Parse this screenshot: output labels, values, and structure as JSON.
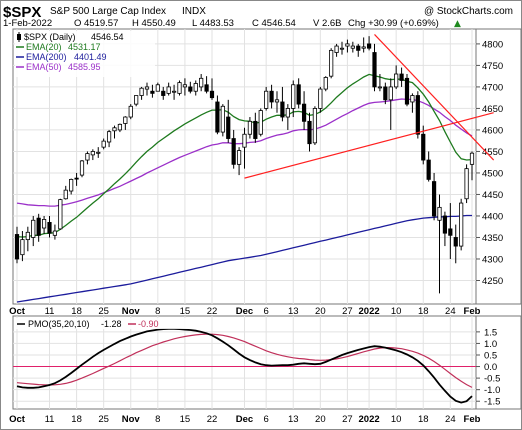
{
  "colors": {
    "up_candle": "#ffffff",
    "down_candle": "#000000",
    "ema20": "#1e7a1e",
    "ema200": "#1c1c9c",
    "ema50": "#9b30c9",
    "trendline": "#ff2020",
    "pmo": "#000000",
    "pmo_signal": "#c0305a",
    "zero_line": "#e0206a",
    "panel_bg": "#ffffff",
    "axis_bg": "#f0eeee"
  },
  "header": {
    "symbol": "$SPX",
    "name": "S&P 500 Large Cap Index",
    "exchange": "INDX",
    "watermark": "@ StockCharts.com",
    "date": "1-Feb-2022",
    "open": "O 4519.57",
    "high": "H 4550.49",
    "low": "L 4483.53",
    "close": "C 4546.54",
    "volume": "V 2.6B",
    "change": "Chg +30.99 (+0.69%)",
    "change_arrow": "▲"
  },
  "legend": [
    {
      "label": "$SPX (Daily)",
      "value": "4546.54",
      "color": "#000000",
      "kind": "candle"
    },
    {
      "label": "EMA(20)",
      "value": "4531.17",
      "color": "#1e7a1e",
      "kind": "line"
    },
    {
      "label": "EMA(200)",
      "value": "4401.49",
      "color": "#1c1c9c",
      "kind": "line"
    },
    {
      "label": "EMA(50)",
      "value": "4585.95",
      "color": "#9b30c9",
      "kind": "line"
    }
  ],
  "pmo_legend": {
    "label": "PMO(35,20,10)",
    "value": "-1.28",
    "signal": "-0.90"
  },
  "chart_data": [
    {
      "type": "candlestick",
      "title": "$SPX S&P 500 Large Cap Index INDX",
      "ylim": [
        4200,
        4830
      ],
      "y_ticks": [
        "4250",
        "4300",
        "4350",
        "4400",
        "4450",
        "4500",
        "4550",
        "4600",
        "4650",
        "4700",
        "4750",
        "4800"
      ],
      "x_ticks": [
        "Oct",
        "11",
        "18",
        "25",
        "Nov",
        "8",
        "15",
        "22",
        "Dec",
        "6",
        "13",
        "20",
        "27",
        "2022",
        "10",
        "18",
        "24",
        "Feb"
      ],
      "x_tick_index": [
        0,
        6,
        11,
        16,
        21,
        26,
        31,
        36,
        42,
        46,
        51,
        56,
        61,
        65,
        70,
        75,
        80,
        84
      ],
      "candles": [
        {
          "o": 4357,
          "h": 4375,
          "l": 4290,
          "c": 4300
        },
        {
          "o": 4310,
          "h": 4365,
          "l": 4295,
          "c": 4345
        },
        {
          "o": 4345,
          "h": 4375,
          "l": 4318,
          "c": 4362
        },
        {
          "o": 4350,
          "h": 4400,
          "l": 4330,
          "c": 4390
        },
        {
          "o": 4395,
          "h": 4405,
          "l": 4340,
          "c": 4355
        },
        {
          "o": 4372,
          "h": 4400,
          "l": 4358,
          "c": 4392
        },
        {
          "o": 4385,
          "h": 4400,
          "l": 4350,
          "c": 4360
        },
        {
          "o": 4355,
          "h": 4380,
          "l": 4345,
          "c": 4365
        },
        {
          "o": 4370,
          "h": 4440,
          "l": 4368,
          "c": 4438
        },
        {
          "o": 4440,
          "h": 4470,
          "l": 4438,
          "c": 4460
        },
        {
          "o": 4458,
          "h": 4487,
          "l": 4450,
          "c": 4485
        },
        {
          "o": 4488,
          "h": 4500,
          "l": 4470,
          "c": 4487
        },
        {
          "o": 4495,
          "h": 4530,
          "l": 4490,
          "c": 4528
        },
        {
          "o": 4530,
          "h": 4550,
          "l": 4520,
          "c": 4545
        },
        {
          "o": 4542,
          "h": 4555,
          "l": 4530,
          "c": 4550
        },
        {
          "o": 4546,
          "h": 4560,
          "l": 4535,
          "c": 4548
        },
        {
          "o": 4560,
          "h": 4580,
          "l": 4555,
          "c": 4574
        },
        {
          "o": 4572,
          "h": 4600,
          "l": 4560,
          "c": 4596
        },
        {
          "o": 4598,
          "h": 4610,
          "l": 4580,
          "c": 4605
        },
        {
          "o": 4600,
          "h": 4615,
          "l": 4595,
          "c": 4613
        },
        {
          "o": 4615,
          "h": 4632,
          "l": 4600,
          "c": 4630
        },
        {
          "o": 4630,
          "h": 4660,
          "l": 4625,
          "c": 4655
        },
        {
          "o": 4660,
          "h": 4680,
          "l": 4655,
          "c": 4680
        },
        {
          "o": 4680,
          "h": 4700,
          "l": 4670,
          "c": 4697
        },
        {
          "o": 4695,
          "h": 4710,
          "l": 4680,
          "c": 4700
        },
        {
          "o": 4690,
          "h": 4705,
          "l": 4675,
          "c": 4685
        },
        {
          "o": 4690,
          "h": 4710,
          "l": 4690,
          "c": 4705
        },
        {
          "o": 4690,
          "h": 4700,
          "l": 4670,
          "c": 4680
        },
        {
          "o": 4685,
          "h": 4710,
          "l": 4680,
          "c": 4700
        },
        {
          "o": 4690,
          "h": 4705,
          "l": 4670,
          "c": 4690
        },
        {
          "o": 4685,
          "h": 4715,
          "l": 4680,
          "c": 4710
        },
        {
          "o": 4700,
          "h": 4720,
          "l": 4680,
          "c": 4705
        },
        {
          "o": 4700,
          "h": 4712,
          "l": 4685,
          "c": 4690
        },
        {
          "o": 4690,
          "h": 4715,
          "l": 4680,
          "c": 4708
        },
        {
          "o": 4700,
          "h": 4730,
          "l": 4690,
          "c": 4720
        },
        {
          "o": 4705,
          "h": 4725,
          "l": 4685,
          "c": 4690
        },
        {
          "o": 4690,
          "h": 4720,
          "l": 4670,
          "c": 4675
        },
        {
          "o": 4665,
          "h": 4680,
          "l": 4590,
          "c": 4595
        },
        {
          "o": 4595,
          "h": 4660,
          "l": 4585,
          "c": 4655
        },
        {
          "o": 4630,
          "h": 4670,
          "l": 4570,
          "c": 4580
        },
        {
          "o": 4580,
          "h": 4600,
          "l": 4510,
          "c": 4520
        },
        {
          "o": 4520,
          "h": 4560,
          "l": 4495,
          "c": 4552
        },
        {
          "o": 4560,
          "h": 4605,
          "l": 4510,
          "c": 4590
        },
        {
          "o": 4590,
          "h": 4630,
          "l": 4580,
          "c": 4620
        },
        {
          "o": 4620,
          "h": 4640,
          "l": 4570,
          "c": 4580
        },
        {
          "o": 4590,
          "h": 4650,
          "l": 4585,
          "c": 4645
        },
        {
          "o": 4650,
          "h": 4700,
          "l": 4645,
          "c": 4690
        },
        {
          "o": 4690,
          "h": 4705,
          "l": 4650,
          "c": 4665
        },
        {
          "o": 4665,
          "h": 4690,
          "l": 4640,
          "c": 4670
        },
        {
          "o": 4665,
          "h": 4700,
          "l": 4620,
          "c": 4630
        },
        {
          "o": 4630,
          "h": 4660,
          "l": 4600,
          "c": 4650
        },
        {
          "o": 4650,
          "h": 4715,
          "l": 4630,
          "c": 4705
        },
        {
          "o": 4705,
          "h": 4720,
          "l": 4650,
          "c": 4660
        },
        {
          "o": 4660,
          "h": 4690,
          "l": 4600,
          "c": 4620
        },
        {
          "o": 4620,
          "h": 4640,
          "l": 4550,
          "c": 4568
        },
        {
          "o": 4570,
          "h": 4655,
          "l": 4565,
          "c": 4650
        },
        {
          "o": 4650,
          "h": 4700,
          "l": 4640,
          "c": 4695
        },
        {
          "o": 4695,
          "h": 4725,
          "l": 4690,
          "c": 4722
        },
        {
          "o": 4725,
          "h": 4790,
          "l": 4720,
          "c": 4785
        },
        {
          "o": 4780,
          "h": 4800,
          "l": 4770,
          "c": 4795
        },
        {
          "o": 4790,
          "h": 4805,
          "l": 4775,
          "c": 4790
        },
        {
          "o": 4795,
          "h": 4810,
          "l": 4780,
          "c": 4800
        },
        {
          "o": 4790,
          "h": 4805,
          "l": 4780,
          "c": 4795
        },
        {
          "o": 4795,
          "h": 4800,
          "l": 4770,
          "c": 4785
        },
        {
          "o": 4790,
          "h": 4815,
          "l": 4780,
          "c": 4793
        },
        {
          "o": 4800,
          "h": 4818,
          "l": 4785,
          "c": 4790
        },
        {
          "o": 4780,
          "h": 4800,
          "l": 4690,
          "c": 4700
        },
        {
          "o": 4700,
          "h": 4730,
          "l": 4690,
          "c": 4700
        },
        {
          "o": 4700,
          "h": 4710,
          "l": 4660,
          "c": 4670
        },
        {
          "o": 4670,
          "h": 4720,
          "l": 4600,
          "c": 4700
        },
        {
          "o": 4700,
          "h": 4750,
          "l": 4695,
          "c": 4730
        },
        {
          "o": 4730,
          "h": 4745,
          "l": 4700,
          "c": 4715
        },
        {
          "o": 4720,
          "h": 4730,
          "l": 4655,
          "c": 4660
        },
        {
          "o": 4665,
          "h": 4685,
          "l": 4640,
          "c": 4680
        },
        {
          "o": 4680,
          "h": 4690,
          "l": 4580,
          "c": 4590
        },
        {
          "o": 4590,
          "h": 4610,
          "l": 4520,
          "c": 4530
        },
        {
          "o": 4530,
          "h": 4550,
          "l": 4480,
          "c": 4485
        },
        {
          "o": 4480,
          "h": 4500,
          "l": 4390,
          "c": 4400
        },
        {
          "o": 4390,
          "h": 4450,
          "l": 4220,
          "c": 4420
        },
        {
          "o": 4400,
          "h": 4410,
          "l": 4330,
          "c": 4360
        },
        {
          "o": 4370,
          "h": 4430,
          "l": 4300,
          "c": 4355
        },
        {
          "o": 4350,
          "h": 4380,
          "l": 4290,
          "c": 4330
        },
        {
          "o": 4330,
          "h": 4440,
          "l": 4320,
          "c": 4430
        },
        {
          "o": 4440,
          "h": 4520,
          "l": 4430,
          "c": 4510
        },
        {
          "o": 4520,
          "h": 4550,
          "l": 4483,
          "c": 4546
        }
      ],
      "ema20": [
        4352,
        4351,
        4352,
        4355,
        4355,
        4359,
        4360,
        4361,
        4369,
        4378,
        4388,
        4397,
        4408,
        4419,
        4430,
        4440,
        4452,
        4463,
        4475,
        4486,
        4498,
        4511,
        4525,
        4538,
        4550,
        4560,
        4571,
        4580,
        4589,
        4598,
        4606,
        4614,
        4621,
        4628,
        4635,
        4641,
        4646,
        4646,
        4647,
        4641,
        4631,
        4624,
        4621,
        4620,
        4616,
        4618,
        4625,
        4630,
        4634,
        4634,
        4635,
        4642,
        4643,
        4641,
        4634,
        4636,
        4642,
        4651,
        4663,
        4676,
        4687,
        4698,
        4707,
        4715,
        4723,
        4729,
        4726,
        4723,
        4719,
        4717,
        4718,
        4718,
        4713,
        4710,
        4698,
        4683,
        4665,
        4643,
        4622,
        4596,
        4572,
        4548,
        4533,
        4530,
        4531
      ],
      "ema200": [
        4200,
        4202,
        4204,
        4206,
        4208,
        4210,
        4212,
        4214,
        4216,
        4218,
        4220,
        4222,
        4224,
        4226,
        4228,
        4230,
        4232,
        4234,
        4236,
        4238,
        4240,
        4242,
        4245,
        4248,
        4251,
        4254,
        4257,
        4260,
        4263,
        4266,
        4269,
        4272,
        4275,
        4278,
        4281,
        4284,
        4287,
        4290,
        4293,
        4296,
        4298,
        4300,
        4302,
        4304,
        4306,
        4308,
        4311,
        4314,
        4317,
        4320,
        4323,
        4326,
        4329,
        4332,
        4335,
        4338,
        4341,
        4344,
        4347,
        4350,
        4353,
        4356,
        4359,
        4362,
        4365,
        4368,
        4371,
        4374,
        4377,
        4380,
        4383,
        4386,
        4389,
        4391,
        4393,
        4395,
        4396,
        4397,
        4398,
        4398,
        4399,
        4399,
        4400,
        4401,
        4401
      ],
      "ema50": [
        4430,
        4428,
        4426,
        4425,
        4424,
        4424,
        4423,
        4423,
        4425,
        4427,
        4430,
        4433,
        4437,
        4441,
        4445,
        4449,
        4454,
        4459,
        4464,
        4469,
        4475,
        4481,
        4487,
        4493,
        4500,
        4506,
        4512,
        4518,
        4524,
        4530,
        4536,
        4541,
        4546,
        4551,
        4556,
        4561,
        4565,
        4567,
        4570,
        4570,
        4568,
        4568,
        4569,
        4571,
        4572,
        4575,
        4580,
        4584,
        4588,
        4590,
        4593,
        4598,
        4600,
        4601,
        4600,
        4602,
        4606,
        4611,
        4618,
        4625,
        4632,
        4638,
        4645,
        4651,
        4657,
        4662,
        4664,
        4665,
        4666,
        4668,
        4670,
        4672,
        4671,
        4671,
        4668,
        4663,
        4657,
        4649,
        4641,
        4631,
        4622,
        4611,
        4602,
        4593,
        4586
      ],
      "trendlines": [
        {
          "x0": 42,
          "y0": 4488,
          "x1": 88,
          "y1": 4640
        },
        {
          "x0": 66,
          "y0": 4822,
          "x1": 88,
          "y1": 4530
        }
      ]
    },
    {
      "type": "line",
      "title": "PMO(35,20,10)",
      "ylim": [
        -1.75,
        2.1
      ],
      "y_ticks": [
        "-1.5",
        "-1.0",
        "-0.5",
        "0.0",
        "0.5",
        "1.0",
        "1.5"
      ],
      "x_ticks": [
        "Oct",
        "11",
        "18",
        "25",
        "Nov",
        "8",
        "15",
        "22",
        "Dec",
        "6",
        "13",
        "20",
        "27",
        "2022",
        "10",
        "18",
        "24",
        "Feb"
      ],
      "series": [
        {
          "name": "PMO",
          "values": [
            -0.85,
            -0.9,
            -0.92,
            -0.92,
            -0.9,
            -0.85,
            -0.8,
            -0.72,
            -0.6,
            -0.45,
            -0.28,
            -0.1,
            0.08,
            0.25,
            0.42,
            0.58,
            0.72,
            0.85,
            0.98,
            1.1,
            1.2,
            1.3,
            1.38,
            1.45,
            1.52,
            1.56,
            1.6,
            1.62,
            1.63,
            1.63,
            1.62,
            1.6,
            1.58,
            1.55,
            1.5,
            1.44,
            1.35,
            1.22,
            1.08,
            0.92,
            0.74,
            0.56,
            0.4,
            0.28,
            0.18,
            0.1,
            0.06,
            0.04,
            0.05,
            0.06,
            0.06,
            0.08,
            0.12,
            0.14,
            0.12,
            0.1,
            0.12,
            0.2,
            0.3,
            0.4,
            0.5,
            0.58,
            0.65,
            0.72,
            0.78,
            0.84,
            0.88,
            0.86,
            0.82,
            0.76,
            0.7,
            0.62,
            0.52,
            0.4,
            0.25,
            0.05,
            -0.2,
            -0.48,
            -0.78,
            -1.05,
            -1.3,
            -1.48,
            -1.56,
            -1.5,
            -1.28
          ]
        },
        {
          "name": "Signal",
          "values": [
            -0.7,
            -0.72,
            -0.74,
            -0.76,
            -0.78,
            -0.79,
            -0.8,
            -0.79,
            -0.77,
            -0.73,
            -0.67,
            -0.59,
            -0.5,
            -0.4,
            -0.3,
            -0.19,
            -0.08,
            0.02,
            0.13,
            0.25,
            0.37,
            0.48,
            0.6,
            0.7,
            0.8,
            0.9,
            0.98,
            1.06,
            1.13,
            1.2,
            1.25,
            1.3,
            1.34,
            1.37,
            1.39,
            1.4,
            1.4,
            1.38,
            1.35,
            1.3,
            1.24,
            1.16,
            1.08,
            0.98,
            0.88,
            0.78,
            0.68,
            0.6,
            0.53,
            0.47,
            0.42,
            0.38,
            0.35,
            0.33,
            0.3,
            0.28,
            0.27,
            0.28,
            0.3,
            0.33,
            0.38,
            0.43,
            0.5,
            0.57,
            0.64,
            0.7,
            0.76,
            0.8,
            0.82,
            0.82,
            0.8,
            0.77,
            0.72,
            0.66,
            0.58,
            0.48,
            0.36,
            0.22,
            0.06,
            -0.12,
            -0.3,
            -0.48,
            -0.64,
            -0.78,
            -0.9
          ]
        }
      ]
    }
  ]
}
